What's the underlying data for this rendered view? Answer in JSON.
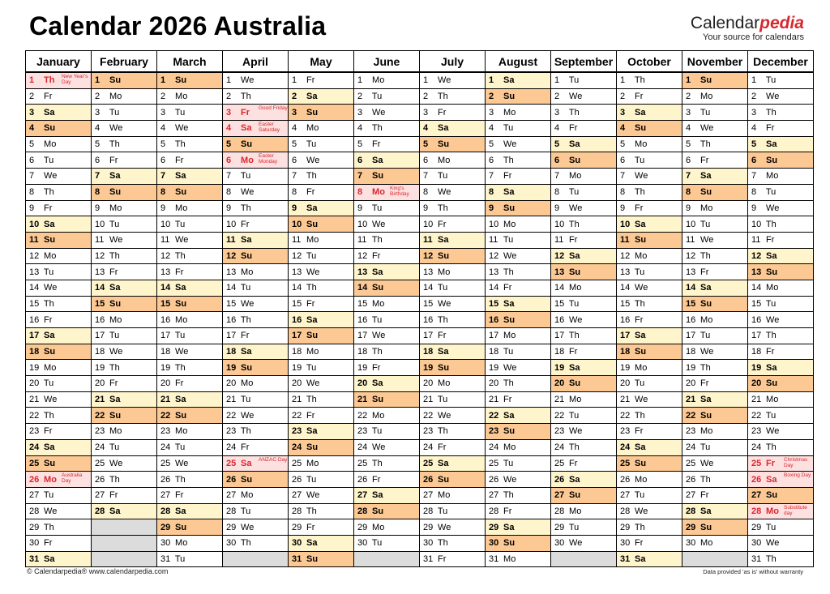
{
  "title": "Calendar 2026 Australia",
  "brand": {
    "name_plain": "Calendar",
    "name_accent": "pedia",
    "tagline": "Your source for calendars"
  },
  "footer": {
    "left": "© Calendarpedia®   www.calendarpedia.com",
    "right": "Data provided 'as is' without warranty"
  },
  "colors": {
    "saturday": "#fff5cc",
    "sunday": "#fcc994",
    "holiday_text": "#d9272e",
    "holiday_bg": "#fde0e0",
    "empty": "#dcdcdc"
  },
  "weekdays": [
    "Mo",
    "Tu",
    "We",
    "Th",
    "Fr",
    "Sa",
    "Su"
  ],
  "months": [
    {
      "name": "January",
      "days": 31,
      "start": 3
    },
    {
      "name": "February",
      "days": 28,
      "start": 6
    },
    {
      "name": "March",
      "days": 31,
      "start": 6
    },
    {
      "name": "April",
      "days": 30,
      "start": 2
    },
    {
      "name": "May",
      "days": 31,
      "start": 4
    },
    {
      "name": "June",
      "days": 30,
      "start": 0
    },
    {
      "name": "July",
      "days": 31,
      "start": 2
    },
    {
      "name": "August",
      "days": 31,
      "start": 5
    },
    {
      "name": "September",
      "days": 30,
      "start": 1
    },
    {
      "name": "October",
      "days": 31,
      "start": 3
    },
    {
      "name": "November",
      "days": 30,
      "start": 6
    },
    {
      "name": "December",
      "days": 31,
      "start": 1
    }
  ],
  "holidays": [
    {
      "month": 0,
      "day": 1,
      "name": "New Year's Day"
    },
    {
      "month": 0,
      "day": 26,
      "name": "Australia Day"
    },
    {
      "month": 3,
      "day": 3,
      "name": "Good Friday"
    },
    {
      "month": 3,
      "day": 4,
      "name": "Easter Saturday"
    },
    {
      "month": 3,
      "day": 6,
      "name": "Easter Monday"
    },
    {
      "month": 3,
      "day": 25,
      "name": "ANZAC Day"
    },
    {
      "month": 5,
      "day": 8,
      "name": "King's Birthday"
    },
    {
      "month": 11,
      "day": 25,
      "name": "Christmas Day"
    },
    {
      "month": 11,
      "day": 26,
      "name": "Boxing Day"
    },
    {
      "month": 11,
      "day": 28,
      "name": "Substitute day"
    }
  ]
}
